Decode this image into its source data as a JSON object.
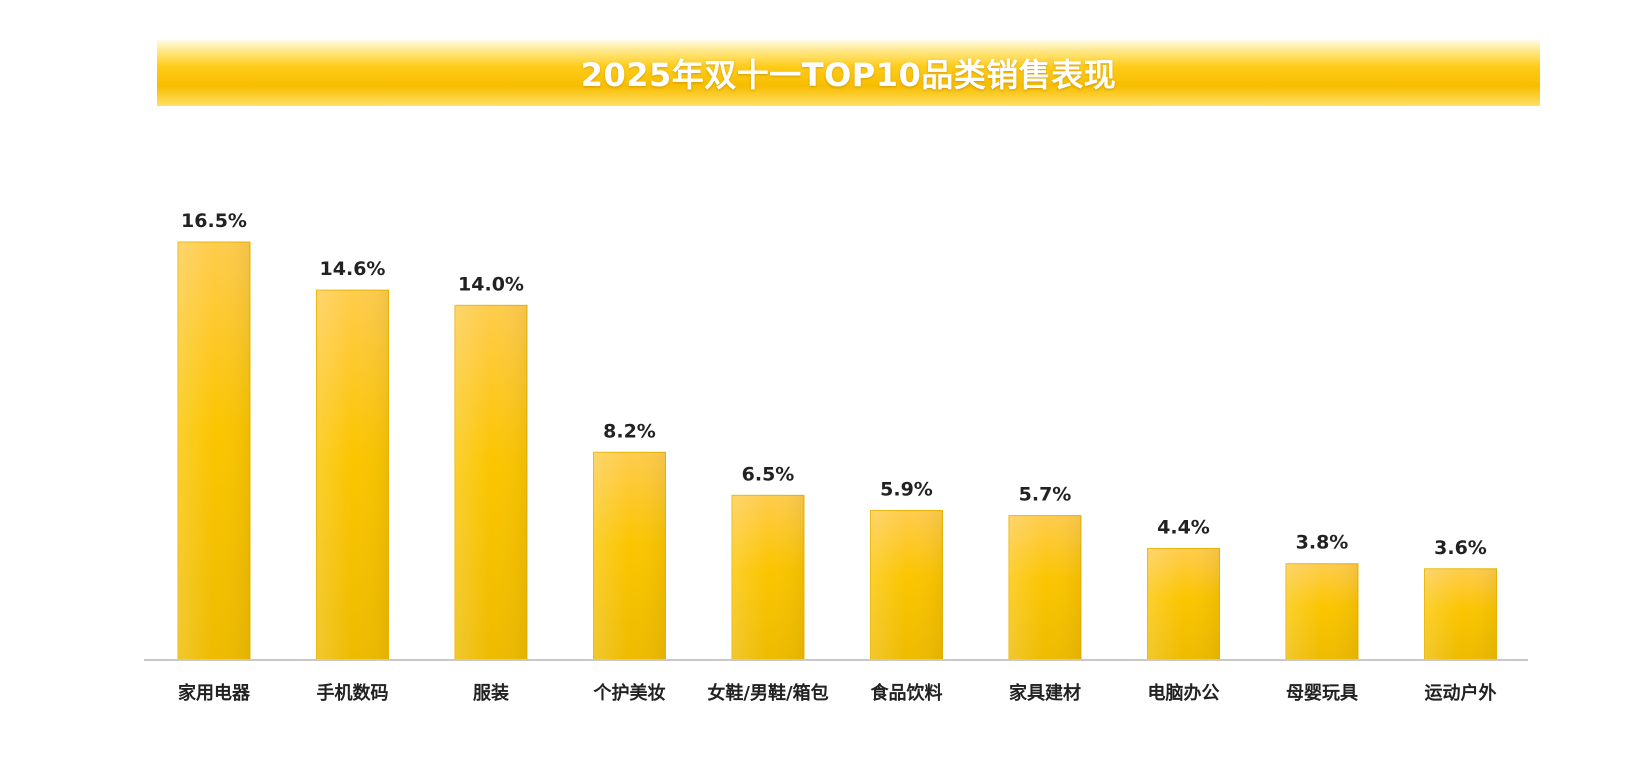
{
  "chart_data": {
    "type": "bar",
    "title": "2025年双十一TOP10品类销售表现",
    "categories": [
      "家用电器",
      "手机数码",
      "服装",
      "个护美妆",
      "女鞋/男鞋/箱包",
      "食品饮料",
      "家具建材",
      "电脑办公",
      "母婴玩具",
      "运动户外"
    ],
    "values": [
      16.5,
      14.6,
      14.0,
      8.2,
      6.5,
      5.9,
      5.7,
      4.4,
      3.8,
      3.6
    ],
    "value_labels": [
      "16.5%",
      "14.6%",
      "14.0%",
      "8.2%",
      "6.5%",
      "5.9%",
      "5.7%",
      "4.4%",
      "3.8%",
      "3.6%"
    ],
    "xlabel": "",
    "ylabel": "",
    "ylim": [
      0,
      16.5
    ],
    "grid": false,
    "bar_color": "#f9c400"
  }
}
